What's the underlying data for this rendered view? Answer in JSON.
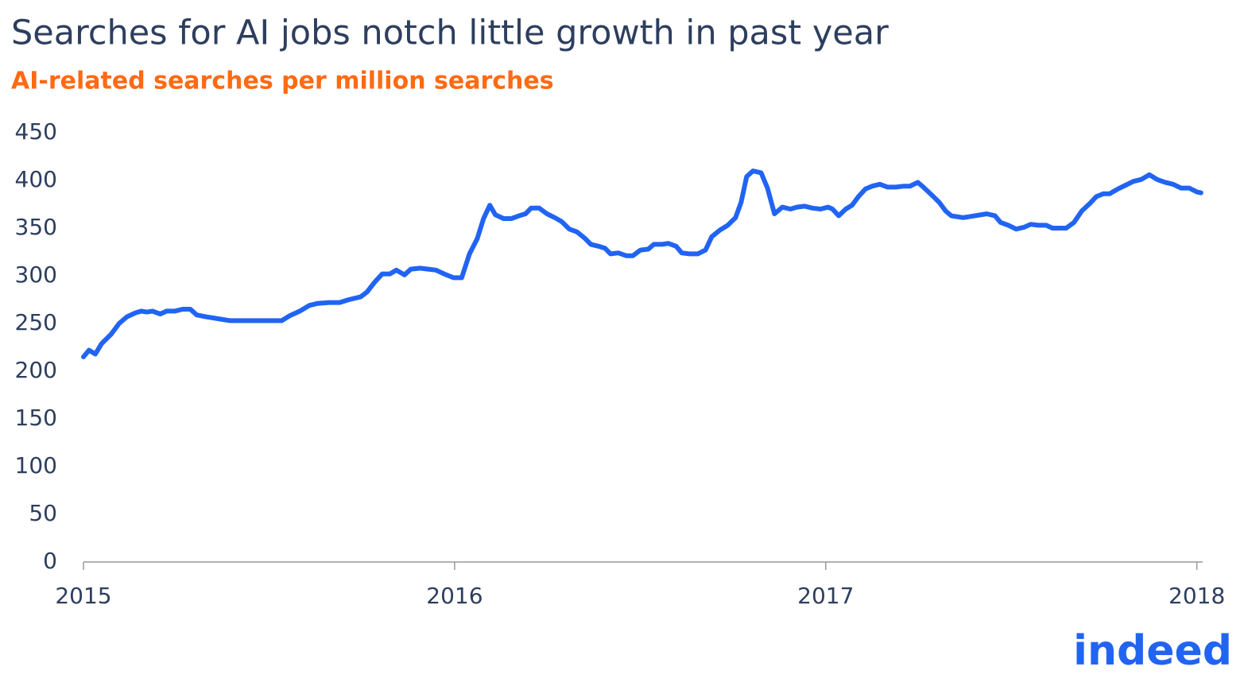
{
  "chart_data": {
    "type": "line",
    "title": "Searches for AI jobs notch little growth in past year",
    "subtitle": "AI-related searches per million searches",
    "logo": "indeed",
    "x": [
      2015.0,
      2015.015,
      2015.032,
      2015.049,
      2015.075,
      2015.096,
      2015.117,
      2015.139,
      2015.156,
      2015.171,
      2015.186,
      2015.207,
      2015.224,
      2015.246,
      2015.267,
      2015.288,
      2015.305,
      2015.331,
      2015.363,
      2015.395,
      2015.416,
      2015.438,
      2015.459,
      2015.491,
      2015.534,
      2015.555,
      2015.583,
      2015.609,
      2015.63,
      2015.662,
      2015.673,
      2015.69,
      2015.715,
      2015.747,
      2015.764,
      2015.784,
      2015.805,
      2015.826,
      2015.843,
      2015.865,
      2015.882,
      2015.907,
      2015.929,
      2015.95,
      2015.972,
      2015.997,
      2016.019,
      2016.04,
      2016.061,
      2016.078,
      2016.095,
      2016.11,
      2016.132,
      2016.153,
      2016.174,
      2016.191,
      2016.206,
      2016.228,
      2016.249,
      2016.27,
      2016.288,
      2016.309,
      2016.33,
      2016.352,
      2016.367,
      2016.388,
      2016.405,
      2016.42,
      2016.441,
      2016.463,
      2016.48,
      2016.501,
      2016.522,
      2016.537,
      2016.559,
      2016.576,
      2016.597,
      2016.612,
      2016.633,
      2016.655,
      2016.676,
      2016.693,
      2016.715,
      2016.736,
      2016.757,
      2016.772,
      2016.787,
      2016.804,
      2016.826,
      2016.843,
      2016.862,
      2016.883,
      2016.905,
      2016.922,
      2016.943,
      2016.964,
      2016.986,
      2017.007,
      2017.018,
      2017.035,
      2017.054,
      2017.071,
      2017.088,
      2017.107,
      2017.125,
      2017.146,
      2017.167,
      2017.189,
      2017.21,
      2017.227,
      2017.248,
      2017.263,
      2017.285,
      2017.306,
      2017.323,
      2017.338,
      2017.37,
      2017.402,
      2017.434,
      2017.456,
      2017.471,
      2017.492,
      2017.513,
      2017.535,
      2017.552,
      2017.573,
      2017.594,
      2017.611,
      2017.648,
      2017.669,
      2017.69,
      2017.712,
      2017.729,
      2017.748,
      2017.765,
      2017.787,
      2017.808,
      2017.829,
      2017.85,
      2017.872,
      2017.893,
      2017.915,
      2017.936,
      2017.957,
      2017.979,
      2018.0,
      2018.011
    ],
    "series": [
      {
        "name": "AI-related searches",
        "color": "#2164f3",
        "values": [
          215,
          222,
          218,
          229,
          239,
          250,
          257,
          261,
          263,
          262,
          263,
          260,
          263,
          263,
          265,
          265,
          259,
          257,
          255,
          253,
          253,
          253,
          253,
          253,
          253,
          258,
          263,
          269,
          271,
          272,
          272,
          272,
          275,
          278,
          283,
          293,
          302,
          302,
          306,
          301,
          307,
          308,
          307,
          306,
          302,
          298,
          298,
          323,
          339,
          360,
          374,
          364,
          360,
          360,
          363,
          365,
          371,
          371,
          365,
          361,
          357,
          349,
          346,
          339,
          333,
          331,
          329,
          323,
          324,
          321,
          321,
          327,
          328,
          333,
          333,
          334,
          331,
          324,
          323,
          323,
          327,
          341,
          348,
          353,
          361,
          377,
          404,
          410,
          408,
          392,
          365,
          372,
          370,
          372,
          373,
          371,
          370,
          372,
          370,
          363,
          370,
          374,
          383,
          391,
          394,
          396,
          393,
          393,
          394,
          394,
          398,
          393,
          385,
          377,
          368,
          363,
          361,
          363,
          365,
          363,
          356,
          353,
          349,
          351,
          354,
          353,
          353,
          350,
          350,
          356,
          368,
          376,
          383,
          386,
          386,
          391,
          395,
          399,
          401,
          406,
          401,
          398,
          396,
          392,
          392,
          388,
          387
        ]
      }
    ],
    "xlim": [
      2015,
      2018.02
    ],
    "xticks": [
      2015,
      2016,
      2017,
      2018
    ],
    "ylim": [
      0,
      450
    ],
    "yticks": [
      0,
      50,
      100,
      150,
      200,
      250,
      300,
      350,
      400,
      450
    ],
    "grid": false
  }
}
